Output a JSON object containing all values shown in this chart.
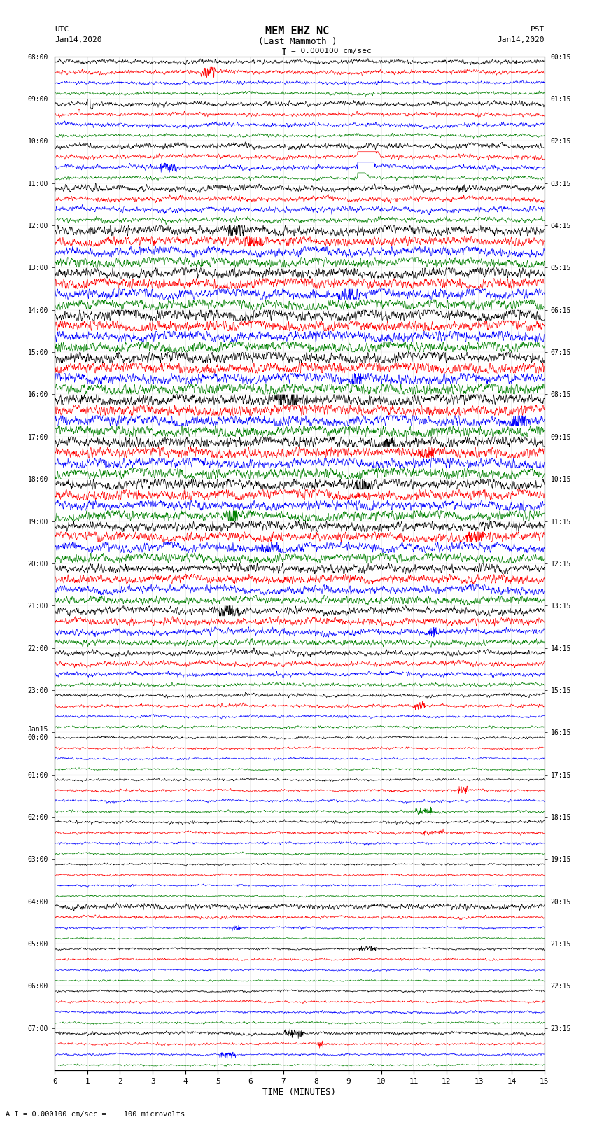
{
  "title_line1": "MEM EHZ NC",
  "title_line2": "(East Mammoth )",
  "title_line3": "I = 0.000100 cm/sec",
  "label_left_top": "UTC",
  "label_left_date": "Jan14,2020",
  "label_right_top": "PST",
  "label_right_date": "Jan14,2020",
  "xlabel": "TIME (MINUTES)",
  "footnote": "A I = 0.000100 cm/sec =    100 microvolts",
  "colors_cycle": [
    "black",
    "red",
    "blue",
    "green"
  ],
  "background_color": "white",
  "x_ticks": [
    0,
    1,
    2,
    3,
    4,
    5,
    6,
    7,
    8,
    9,
    10,
    11,
    12,
    13,
    14,
    15
  ],
  "fig_width": 8.5,
  "fig_height": 16.13,
  "dpi": 100,
  "total_rows": 96,
  "left_utc_times": [
    "08:00",
    "",
    "",
    "",
    "09:00",
    "",
    "",
    "",
    "10:00",
    "",
    "",
    "",
    "11:00",
    "",
    "",
    "",
    "12:00",
    "",
    "",
    "",
    "13:00",
    "",
    "",
    "",
    "14:00",
    "",
    "",
    "",
    "15:00",
    "",
    "",
    "",
    "16:00",
    "",
    "",
    "",
    "17:00",
    "",
    "",
    "",
    "18:00",
    "",
    "",
    "",
    "19:00",
    "",
    "",
    "",
    "20:00",
    "",
    "",
    "",
    "21:00",
    "",
    "",
    "",
    "22:00",
    "",
    "",
    "",
    "23:00",
    "",
    "",
    "",
    "Jan15\n00:00",
    "",
    "",
    "",
    "01:00",
    "",
    "",
    "",
    "02:00",
    "",
    "",
    "",
    "03:00",
    "",
    "",
    "",
    "04:00",
    "",
    "",
    "",
    "05:00",
    "",
    "",
    "",
    "06:00",
    "",
    "",
    "",
    "07:00",
    "",
    "",
    ""
  ],
  "right_pst_times": [
    "00:15",
    "",
    "",
    "",
    "01:15",
    "",
    "",
    "",
    "02:15",
    "",
    "",
    "",
    "03:15",
    "",
    "",
    "",
    "04:15",
    "",
    "",
    "",
    "05:15",
    "",
    "",
    "",
    "06:15",
    "",
    "",
    "",
    "07:15",
    "",
    "",
    "",
    "08:15",
    "",
    "",
    "",
    "09:15",
    "",
    "",
    "",
    "10:15",
    "",
    "",
    "",
    "11:15",
    "",
    "",
    "",
    "12:15",
    "",
    "",
    "",
    "13:15",
    "",
    "",
    "",
    "14:15",
    "",
    "",
    "",
    "15:15",
    "",
    "",
    "",
    "16:15",
    "",
    "",
    "",
    "17:15",
    "",
    "",
    "",
    "18:15",
    "",
    "",
    "",
    "19:15",
    "",
    "",
    "",
    "20:15",
    "",
    "",
    "",
    "21:15",
    "",
    "",
    "",
    "22:15",
    "",
    "",
    "",
    "23:15",
    "",
    "",
    ""
  ],
  "amp_by_row": [
    0.25,
    0.25,
    0.2,
    0.18,
    0.28,
    0.22,
    0.25,
    0.18,
    0.3,
    0.25,
    0.28,
    0.2,
    0.35,
    0.3,
    0.32,
    0.28,
    0.55,
    0.55,
    0.55,
    0.55,
    0.6,
    0.6,
    0.6,
    0.6,
    0.65,
    0.65,
    0.65,
    0.65,
    0.65,
    0.65,
    0.65,
    0.65,
    0.65,
    0.65,
    0.65,
    0.65,
    0.62,
    0.62,
    0.62,
    0.62,
    0.6,
    0.6,
    0.58,
    0.58,
    0.55,
    0.55,
    0.52,
    0.52,
    0.5,
    0.5,
    0.48,
    0.45,
    0.42,
    0.4,
    0.38,
    0.35,
    0.3,
    0.28,
    0.25,
    0.22,
    0.2,
    0.18,
    0.15,
    0.15,
    0.14,
    0.13,
    0.12,
    0.12,
    0.13,
    0.14,
    0.15,
    0.15,
    0.16,
    0.16,
    0.14,
    0.13,
    0.12,
    0.12,
    0.11,
    0.11,
    0.3,
    0.18,
    0.12,
    0.1,
    0.12,
    0.12,
    0.11,
    0.1,
    0.12,
    0.13,
    0.14,
    0.12,
    0.18,
    0.14,
    0.12,
    0.1
  ]
}
